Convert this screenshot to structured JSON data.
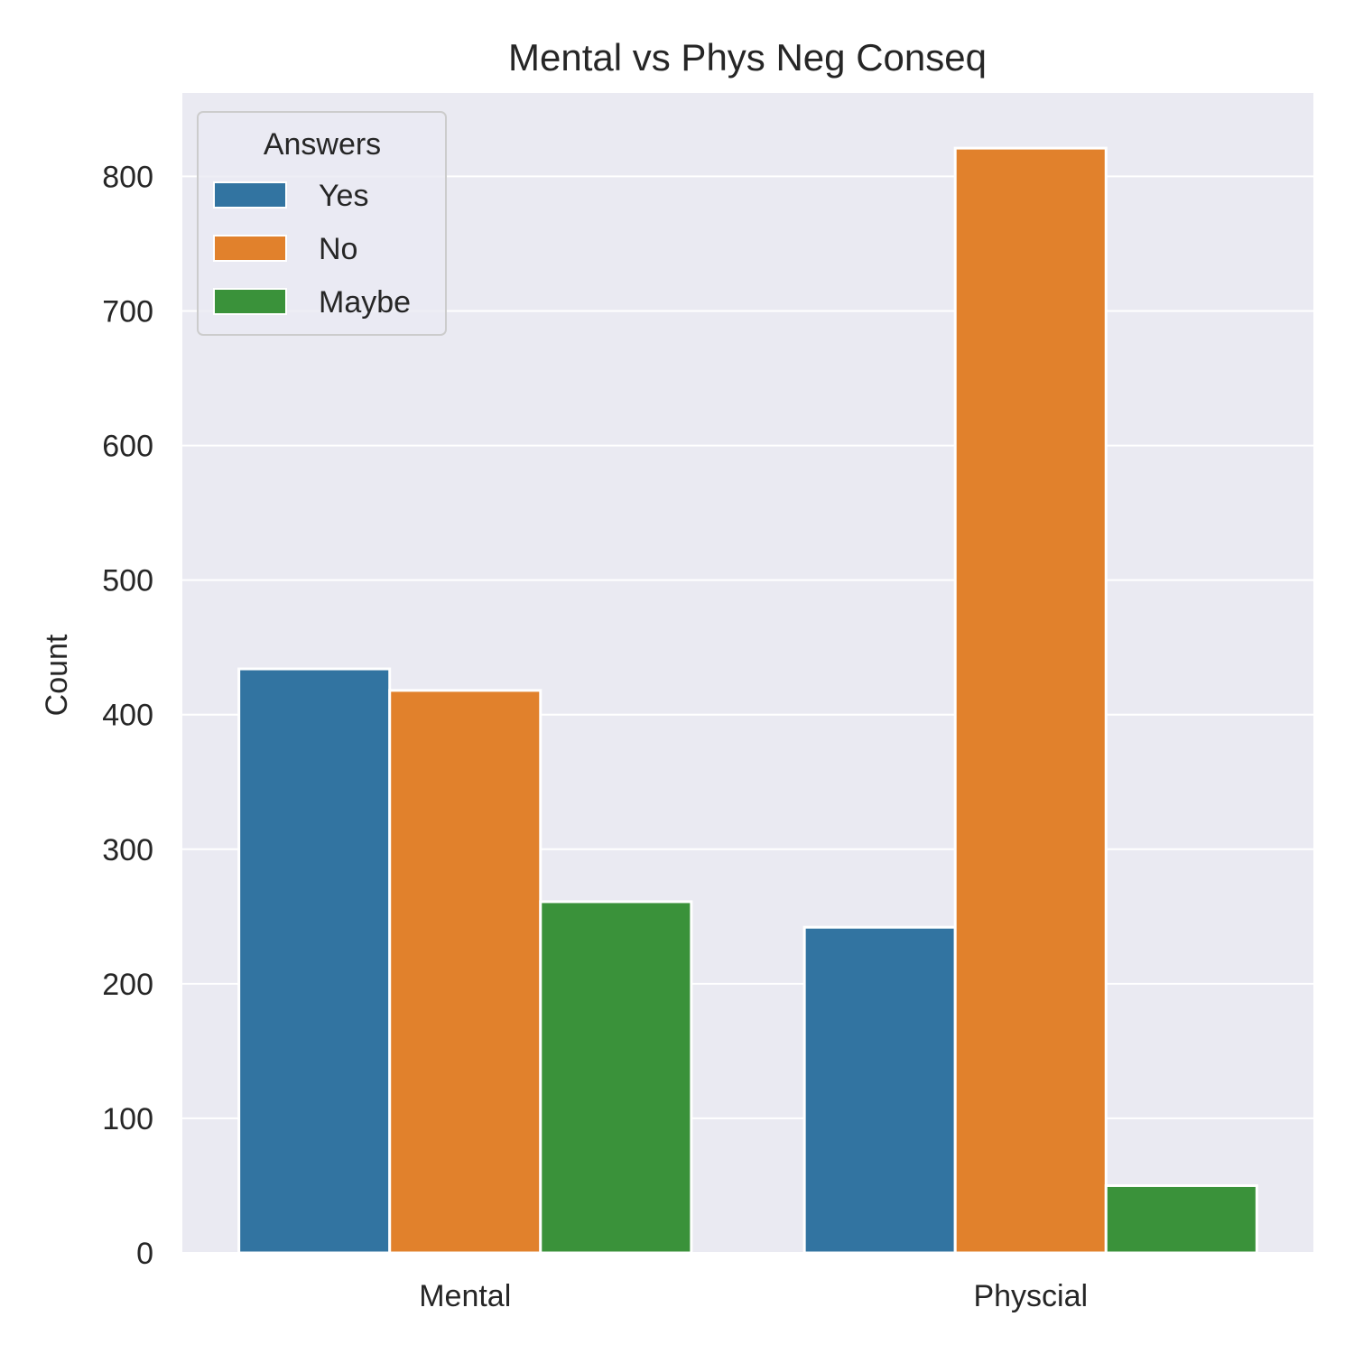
{
  "chart_data": {
    "type": "bar",
    "title": "Mental vs Phys Neg Conseq",
    "xlabel": "",
    "ylabel": "Count",
    "categories": [
      "Mental",
      "Physcial"
    ],
    "series": [
      {
        "name": "Yes",
        "color": "#3274a1",
        "values": [
          434,
          242
        ]
      },
      {
        "name": "No",
        "color": "#e1812c",
        "values": [
          418,
          821
        ]
      },
      {
        "name": "Maybe",
        "color": "#3a923a",
        "values": [
          261,
          50
        ]
      }
    ],
    "ylim": [
      0,
      862
    ],
    "yticks": [
      0,
      100,
      200,
      300,
      400,
      500,
      600,
      700,
      800
    ],
    "grid": true,
    "legend": {
      "title": "Answers",
      "placement": "top-left"
    },
    "background_color": "#eaeaf2"
  }
}
